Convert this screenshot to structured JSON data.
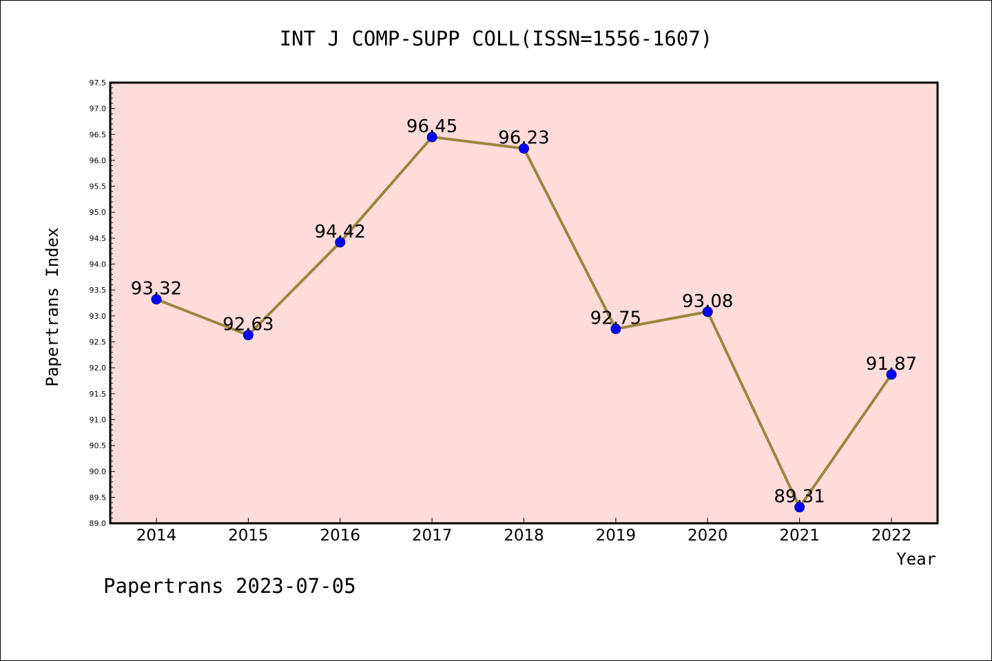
{
  "chart_data": {
    "type": "line",
    "title": "INT J COMP-SUPP COLL(ISSN=1556-1607)",
    "xlabel": "Year",
    "ylabel": "Papertrans Index",
    "categories": [
      "2014",
      "2015",
      "2016",
      "2017",
      "2018",
      "2019",
      "2020",
      "2021",
      "2022"
    ],
    "series": [
      {
        "name": "Papertrans Index",
        "values": [
          93.32,
          92.63,
          94.42,
          96.45,
          96.23,
          92.75,
          93.08,
          89.31,
          91.87
        ]
      }
    ],
    "data_labels": [
      "93.32",
      "92.63",
      "94.42",
      "96.45",
      "96.23",
      "92.75",
      "93.08",
      "89.31",
      "91.87"
    ],
    "ylim": [
      89.0,
      97.5
    ],
    "yticks": [
      "89.0",
      "89.5",
      "90.0",
      "90.5",
      "91.0",
      "91.5",
      "92.0",
      "92.5",
      "93.0",
      "93.5",
      "94.0",
      "94.5",
      "95.0",
      "95.5",
      "96.0",
      "96.5",
      "97.0",
      "97.5"
    ],
    "grid": false,
    "legend": "none",
    "colors": {
      "plot_background": "#fddcda",
      "line": "#9c8540",
      "marker": "#0000ff",
      "marker_edge": "#00008b"
    }
  },
  "footer": {
    "text": "Papertrans 2023-07-05"
  }
}
